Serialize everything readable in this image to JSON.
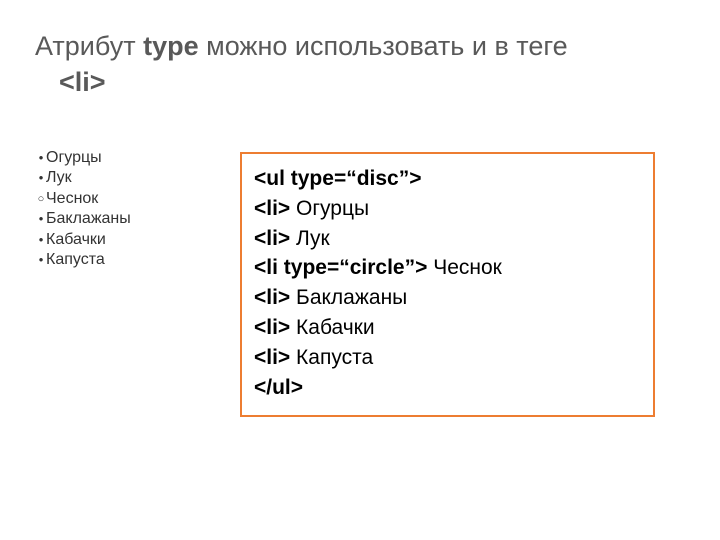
{
  "heading": {
    "prefix": "Атрибут ",
    "bold1": "type",
    "middle": " можно использовать и в теге",
    "tag": "<li>"
  },
  "list": {
    "items": [
      {
        "bullet": "disc",
        "text": "Огурцы"
      },
      {
        "bullet": "disc",
        "text": "Лук"
      },
      {
        "bullet": "circle",
        "text": "Чеснок"
      },
      {
        "bullet": "disc",
        "text": "Баклажаны"
      },
      {
        "bullet": "disc",
        "text": "Кабачки"
      },
      {
        "bullet": "disc",
        "text": "Капуста"
      }
    ]
  },
  "code": {
    "lines": [
      {
        "tag": "<ul type=“disc”>",
        "text": ""
      },
      {
        "tag": "<li>",
        "text": " Огурцы"
      },
      {
        "tag": "<li>",
        "text": " Лук"
      },
      {
        "tag": "<li type=“circle”>",
        "text": " Чеснок"
      },
      {
        "tag": "<li>",
        "text": " Баклажаны"
      },
      {
        "tag": "<li>",
        "text": " Кабачки"
      },
      {
        "tag": "<li>",
        "text": " Капуста"
      },
      {
        "tag": "</ul>",
        "text": ""
      }
    ]
  },
  "colors": {
    "heading": "#595959",
    "border": "#ed7d31",
    "text": "#000000"
  }
}
